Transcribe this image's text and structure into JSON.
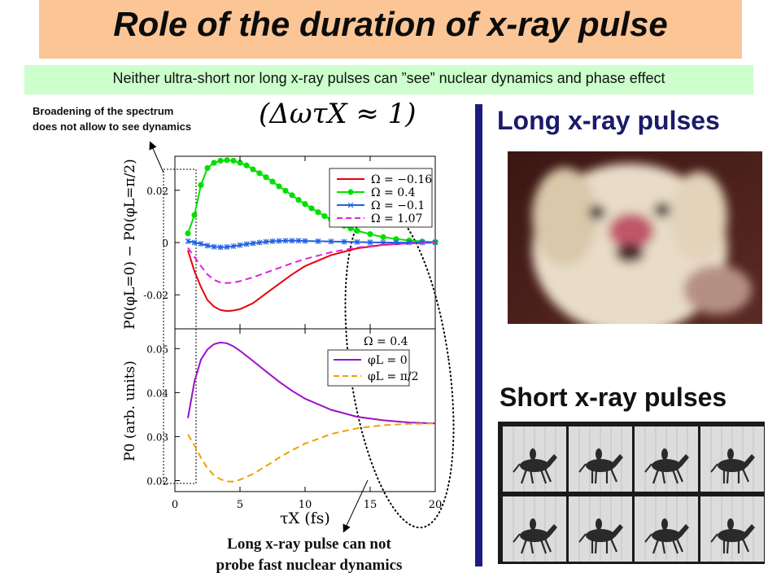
{
  "header": {
    "title": "Role of the duration of x-ray pulse",
    "subtitle": "Neither ultra-short nor long x-ray pulses can ”see” nuclear dynamics and phase effect"
  },
  "annotations": {
    "broadening_line1": "Broadening of the spectrum",
    "broadening_line2": "does not allow to see dynamics",
    "formula": "(ΔωτX ≈ 1)",
    "long_pulse_line1": "Long x-ray pulse can not",
    "long_pulse_line2": "probe fast nuclear dynamics"
  },
  "right_panel": {
    "long_label": "Long x-ray pulses",
    "short_label": "Short x-ray pulses"
  },
  "chart_data": [
    {
      "type": "line",
      "panel": "top",
      "ylabel": "P0(φL=0) − P0(φL=π/2)",
      "xlim": [
        0,
        20
      ],
      "ylim": [
        -0.033,
        0.033
      ],
      "yticks": [
        0.02,
        0,
        -0.02
      ],
      "ytick_labels": [
        "0.02",
        "0",
        "-0.02"
      ],
      "series": [
        {
          "name": "Ω = −0.16",
          "color": "#e8000b",
          "style": "solid",
          "x": [
            1,
            1.5,
            2,
            2.5,
            3,
            3.5,
            4,
            4.5,
            5,
            6,
            7,
            8,
            9,
            10,
            12,
            14,
            16,
            18,
            20
          ],
          "y": [
            -0.003,
            -0.011,
            -0.017,
            -0.022,
            -0.0245,
            -0.0258,
            -0.0262,
            -0.026,
            -0.0255,
            -0.0232,
            -0.0195,
            -0.0158,
            -0.0122,
            -0.009,
            -0.0048,
            -0.0022,
            -0.0009,
            -0.0003,
            0
          ]
        },
        {
          "name": "Ω = 0.4",
          "color": "#00e000",
          "style": "dots",
          "x": [
            1,
            1.5,
            2,
            2.5,
            3,
            3.5,
            4,
            4.5,
            5,
            5.5,
            6,
            6.5,
            7,
            7.5,
            8,
            8.5,
            9,
            9.5,
            10,
            10.5,
            11,
            11.5,
            12,
            12.5,
            13,
            13.5,
            14,
            15,
            16,
            17,
            18,
            19,
            20
          ],
          "y": [
            0.0035,
            0.0105,
            0.022,
            0.0285,
            0.0305,
            0.0313,
            0.0315,
            0.0313,
            0.0305,
            0.0295,
            0.028,
            0.0265,
            0.025,
            0.0233,
            0.0215,
            0.0198,
            0.0181,
            0.0163,
            0.0147,
            0.0131,
            0.0116,
            0.0101,
            0.0088,
            0.0076,
            0.0064,
            0.0054,
            0.0045,
            0.0032,
            0.0021,
            0.0013,
            0.0008,
            0.0004,
            0.0002
          ]
        },
        {
          "name": "Ω = −0.1",
          "color": "#2060e0",
          "style": "stars",
          "x": [
            1,
            1.5,
            2,
            2.5,
            3,
            3.5,
            4,
            4.5,
            5,
            5.5,
            6,
            6.5,
            7,
            7.5,
            8,
            8.5,
            9,
            9.5,
            10,
            11,
            12,
            13,
            14,
            15,
            16,
            17,
            18,
            19,
            20
          ],
          "y": [
            0.0005,
            0,
            -0.0005,
            -0.0012,
            -0.0016,
            -0.0018,
            -0.0017,
            -0.0014,
            -0.001,
            -0.0006,
            -0.0003,
            0,
            0.0003,
            0.0005,
            0.0006,
            0.0007,
            0.0007,
            0.0007,
            0.0006,
            0.0005,
            0.0004,
            0.0003,
            0.0002,
            0.0001,
            0,
            0,
            0,
            0,
            0
          ]
        },
        {
          "name": "Ω = 1.07",
          "color": "#e020e0",
          "style": "dashed",
          "x": [
            1,
            1.5,
            2,
            2.5,
            3,
            3.5,
            4,
            4.5,
            5,
            6,
            7,
            8,
            9,
            10,
            12,
            14,
            16,
            18,
            20
          ],
          "y": [
            -0.002,
            -0.0055,
            -0.009,
            -0.0122,
            -0.0143,
            -0.0153,
            -0.0155,
            -0.0153,
            -0.0148,
            -0.0133,
            -0.0115,
            -0.0097,
            -0.0079,
            -0.0063,
            -0.0037,
            -0.0019,
            -0.0008,
            -0.0003,
            0
          ]
        }
      ]
    },
    {
      "type": "line",
      "panel": "bottom",
      "ylabel": "P0 (arb. units)",
      "xlabel": "τX (fs)",
      "xlim": [
        0,
        20
      ],
      "xticks": [
        0,
        5,
        10,
        15,
        20
      ],
      "xtick_labels": [
        "0",
        "5",
        "10",
        "15",
        "20"
      ],
      "ylim": [
        0.0175,
        0.0545
      ],
      "yticks": [
        0.05,
        0.04,
        0.03,
        0.02
      ],
      "ytick_labels": [
        "0.05",
        "0.04",
        "0.03",
        "0.02"
      ],
      "inset_label": "Ω = 0.4",
      "series": [
        {
          "name": "φL = 0",
          "color": "#9a10c8",
          "style": "solid",
          "x": [
            1,
            1.5,
            2,
            2.5,
            3,
            3.5,
            4,
            4.5,
            5,
            6,
            7,
            8,
            9,
            10,
            12,
            14,
            16,
            18,
            20
          ],
          "y": [
            0.0342,
            0.0425,
            0.0475,
            0.0498,
            0.051,
            0.0514,
            0.0512,
            0.0505,
            0.0495,
            0.0472,
            0.0448,
            0.0425,
            0.0404,
            0.0386,
            0.0361,
            0.0345,
            0.0337,
            0.0332,
            0.033
          ]
        },
        {
          "name": "φL = π/2",
          "color": "#f0a000",
          "style": "dashed",
          "x": [
            1,
            1.5,
            2,
            2.5,
            3,
            3.5,
            4,
            4.5,
            5,
            6,
            7,
            8,
            9,
            10,
            12,
            14,
            16,
            18,
            20
          ],
          "y": [
            0.0305,
            0.028,
            0.0252,
            0.0228,
            0.0212,
            0.0203,
            0.0198,
            0.0198,
            0.0202,
            0.0215,
            0.0233,
            0.0252,
            0.0269,
            0.0284,
            0.0306,
            0.0319,
            0.0326,
            0.0329,
            0.033
          ]
        }
      ]
    }
  ],
  "colors": {
    "title_bg": "#fbc596",
    "subtitle_bg": "#ccffcc",
    "accent_bar": "#1c1c80"
  }
}
